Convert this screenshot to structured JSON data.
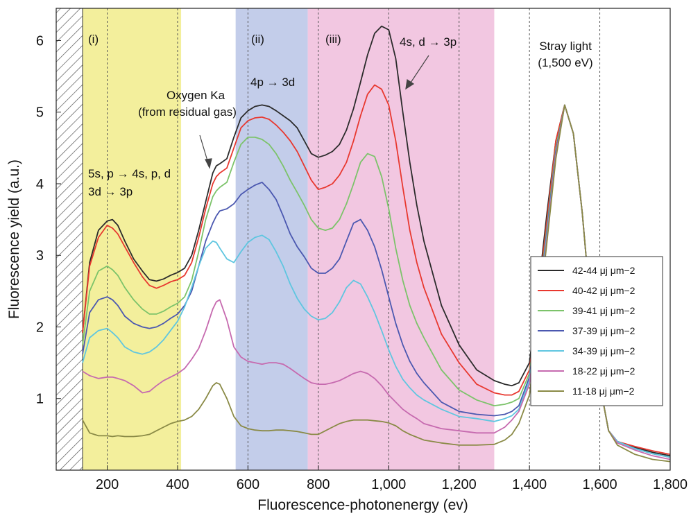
{
  "chart_data": {
    "type": "line",
    "xlabel": "Fluorescence-photonenergy (ev)",
    "ylabel": "Fluorescence yield (a.u.)",
    "xlim": [
      55,
      1800
    ],
    "ylim": [
      0.0,
      6.45
    ],
    "xticks": [
      200,
      400,
      600,
      800,
      1000,
      1200,
      1400,
      1600,
      1800
    ],
    "xtick_labels": [
      "200",
      "400",
      "600",
      "800",
      "1,000",
      "1,200",
      "1,400",
      "1,600",
      "1,800"
    ],
    "yticks": [
      1,
      2,
      3,
      4,
      5,
      6
    ],
    "ytick_labels": [
      "1",
      "2",
      "3",
      "4",
      "5",
      "6"
    ],
    "grid": false,
    "legend_position": "lower-right",
    "regions": [
      {
        "name": "(i)",
        "x0": 130,
        "x1": 410,
        "color": "#f3ef9c"
      },
      {
        "name": "(ii)",
        "x0": 565,
        "x1": 770,
        "color": "#c3cdea"
      },
      {
        "name": "(iii)",
        "x0": 770,
        "x1": 1300,
        "color": "#f2c7e1"
      }
    ],
    "hatched_region": [
      55,
      130
    ],
    "dashed_lines": [
      200,
      400,
      600,
      800,
      1000,
      1200,
      1400,
      1600
    ],
    "annotations": {
      "region_i": "(i)",
      "region_ii": "(ii)",
      "region_iii": "(iii)",
      "trans_i_line1": "5s, p → 4s, p, d",
      "trans_i_line2": "3d → 3p",
      "trans_ii": "4p → 3d",
      "trans_iii": "4s, d → 3p",
      "oxygen_line1": "Oxygen Ka",
      "oxygen_line2": "(from residual gas)",
      "stray_line1": "Stray light",
      "stray_line2": "(1,500 eV)"
    },
    "x": [
      130,
      150,
      175,
      200,
      215,
      230,
      250,
      275,
      300,
      320,
      340,
      360,
      380,
      400,
      420,
      440,
      460,
      480,
      500,
      510,
      520,
      540,
      560,
      580,
      600,
      620,
      640,
      660,
      680,
      700,
      720,
      740,
      760,
      780,
      800,
      820,
      840,
      860,
      880,
      900,
      920,
      940,
      960,
      980,
      1000,
      1020,
      1040,
      1060,
      1080,
      1100,
      1150,
      1200,
      1250,
      1300,
      1330,
      1350,
      1370,
      1400,
      1425,
      1450,
      1475,
      1500,
      1525,
      1550,
      1575,
      1600,
      1625,
      1650,
      1700,
      1750,
      1800
    ],
    "series": [
      {
        "name": "42-44 μj μm−2",
        "color": "#2b2b2b",
        "values": [
          1.92,
          2.9,
          3.35,
          3.48,
          3.5,
          3.42,
          3.2,
          2.95,
          2.78,
          2.66,
          2.64,
          2.67,
          2.72,
          2.76,
          2.82,
          3.0,
          3.35,
          3.75,
          4.15,
          4.25,
          4.28,
          4.35,
          4.65,
          4.92,
          5.02,
          5.08,
          5.1,
          5.08,
          5.02,
          4.95,
          4.88,
          4.78,
          4.6,
          4.42,
          4.37,
          4.4,
          4.45,
          4.55,
          4.75,
          5.05,
          5.42,
          5.8,
          6.1,
          6.2,
          6.15,
          5.75,
          5.0,
          4.3,
          3.7,
          3.2,
          2.3,
          1.75,
          1.4,
          1.25,
          1.2,
          1.18,
          1.22,
          1.5,
          2.5,
          3.6,
          4.6,
          5.1,
          4.7,
          3.6,
          2.2,
          1.2,
          0.55,
          0.4,
          0.32,
          0.25,
          0.2
        ]
      },
      {
        "name": "40-42 μj μm−2",
        "color": "#e8382f",
        "values": [
          1.92,
          2.85,
          3.25,
          3.42,
          3.38,
          3.3,
          3.12,
          2.9,
          2.7,
          2.58,
          2.54,
          2.58,
          2.63,
          2.66,
          2.72,
          2.9,
          3.25,
          3.65,
          4.0,
          4.1,
          4.15,
          4.22,
          4.5,
          4.78,
          4.88,
          4.92,
          4.93,
          4.9,
          4.82,
          4.72,
          4.6,
          4.45,
          4.25,
          4.05,
          3.92,
          3.95,
          4.0,
          4.12,
          4.3,
          4.6,
          4.95,
          5.25,
          5.38,
          5.32,
          5.1,
          4.6,
          3.95,
          3.35,
          2.9,
          2.55,
          1.9,
          1.5,
          1.2,
          1.08,
          1.05,
          1.05,
          1.1,
          1.4,
          2.4,
          3.5,
          4.6,
          5.1,
          4.7,
          3.6,
          2.2,
          1.2,
          0.55,
          0.4,
          0.33,
          0.27,
          0.22
        ]
      },
      {
        "name": "39-41 μj μm−2",
        "color": "#7cc36a",
        "values": [
          1.75,
          2.5,
          2.78,
          2.85,
          2.8,
          2.72,
          2.55,
          2.38,
          2.25,
          2.18,
          2.18,
          2.22,
          2.28,
          2.33,
          2.42,
          2.65,
          3.05,
          3.5,
          3.82,
          3.9,
          3.95,
          4.02,
          4.3,
          4.55,
          4.65,
          4.65,
          4.62,
          4.55,
          4.42,
          4.25,
          4.05,
          3.88,
          3.7,
          3.5,
          3.38,
          3.35,
          3.38,
          3.5,
          3.72,
          4.0,
          4.3,
          4.42,
          4.38,
          4.1,
          3.65,
          3.1,
          2.65,
          2.3,
          2.05,
          1.85,
          1.4,
          1.12,
          0.98,
          0.9,
          0.92,
          0.95,
          1.0,
          1.35,
          2.3,
          3.4,
          4.5,
          5.1,
          4.7,
          3.6,
          2.2,
          1.2,
          0.55,
          0.4,
          0.3,
          0.23,
          0.18
        ]
      },
      {
        "name": "37-39 μj μm−2",
        "color": "#4b58b0",
        "values": [
          1.62,
          2.2,
          2.38,
          2.42,
          2.38,
          2.3,
          2.15,
          2.05,
          2.0,
          1.98,
          2.0,
          2.05,
          2.12,
          2.18,
          2.3,
          2.5,
          2.85,
          3.2,
          3.45,
          3.55,
          3.62,
          3.65,
          3.72,
          3.85,
          3.92,
          3.98,
          4.02,
          3.92,
          3.78,
          3.55,
          3.3,
          3.12,
          2.98,
          2.82,
          2.75,
          2.75,
          2.82,
          2.95,
          3.2,
          3.45,
          3.5,
          3.35,
          3.12,
          2.8,
          2.42,
          2.05,
          1.75,
          1.52,
          1.35,
          1.22,
          0.95,
          0.82,
          0.78,
          0.76,
          0.78,
          0.82,
          0.9,
          1.3,
          2.25,
          3.35,
          4.45,
          5.1,
          4.7,
          3.6,
          2.2,
          1.2,
          0.55,
          0.4,
          0.3,
          0.23,
          0.18
        ]
      },
      {
        "name": "34-39 μj μm−2",
        "color": "#5fc6e0",
        "values": [
          1.5,
          1.85,
          1.95,
          1.98,
          1.92,
          1.85,
          1.72,
          1.65,
          1.62,
          1.65,
          1.72,
          1.82,
          1.95,
          2.08,
          2.28,
          2.55,
          2.85,
          3.1,
          3.2,
          3.18,
          3.1,
          2.95,
          2.9,
          3.05,
          3.18,
          3.25,
          3.28,
          3.22,
          3.05,
          2.85,
          2.6,
          2.4,
          2.25,
          2.15,
          2.1,
          2.12,
          2.2,
          2.35,
          2.55,
          2.65,
          2.6,
          2.42,
          2.2,
          1.95,
          1.68,
          1.45,
          1.27,
          1.15,
          1.05,
          0.98,
          0.85,
          0.75,
          0.72,
          0.68,
          0.72,
          0.76,
          0.85,
          1.25,
          2.2,
          3.3,
          4.4,
          5.1,
          4.7,
          3.6,
          2.2,
          1.2,
          0.55,
          0.4,
          0.3,
          0.23,
          0.18
        ]
      },
      {
        "name": "18-22 μj μm−2",
        "color": "#c66aaf",
        "values": [
          1.38,
          1.32,
          1.28,
          1.3,
          1.3,
          1.28,
          1.25,
          1.18,
          1.08,
          1.1,
          1.18,
          1.25,
          1.3,
          1.35,
          1.42,
          1.55,
          1.7,
          1.95,
          2.25,
          2.35,
          2.38,
          2.1,
          1.72,
          1.58,
          1.52,
          1.5,
          1.48,
          1.5,
          1.5,
          1.48,
          1.42,
          1.35,
          1.28,
          1.22,
          1.2,
          1.2,
          1.22,
          1.25,
          1.3,
          1.35,
          1.38,
          1.35,
          1.28,
          1.18,
          1.05,
          0.95,
          0.85,
          0.78,
          0.72,
          0.65,
          0.58,
          0.55,
          0.52,
          0.52,
          0.6,
          0.7,
          0.82,
          1.2,
          2.15,
          3.25,
          4.4,
          5.1,
          4.7,
          3.6,
          2.2,
          1.2,
          0.55,
          0.38,
          0.28,
          0.2,
          0.15
        ]
      },
      {
        "name": "11-18 μj μm−2",
        "color": "#8a8a46",
        "values": [
          0.7,
          0.52,
          0.48,
          0.48,
          0.47,
          0.48,
          0.47,
          0.47,
          0.48,
          0.5,
          0.55,
          0.6,
          0.65,
          0.68,
          0.7,
          0.75,
          0.85,
          1.0,
          1.18,
          1.22,
          1.2,
          1.0,
          0.75,
          0.62,
          0.58,
          0.56,
          0.55,
          0.55,
          0.56,
          0.56,
          0.55,
          0.54,
          0.52,
          0.5,
          0.5,
          0.55,
          0.6,
          0.65,
          0.68,
          0.7,
          0.7,
          0.7,
          0.69,
          0.68,
          0.66,
          0.62,
          0.55,
          0.5,
          0.46,
          0.42,
          0.38,
          0.35,
          0.35,
          0.36,
          0.42,
          0.5,
          0.65,
          1.05,
          2.05,
          3.2,
          4.35,
          5.1,
          4.7,
          3.6,
          2.2,
          1.2,
          0.55,
          0.35,
          0.22,
          0.15,
          0.12
        ]
      }
    ]
  }
}
